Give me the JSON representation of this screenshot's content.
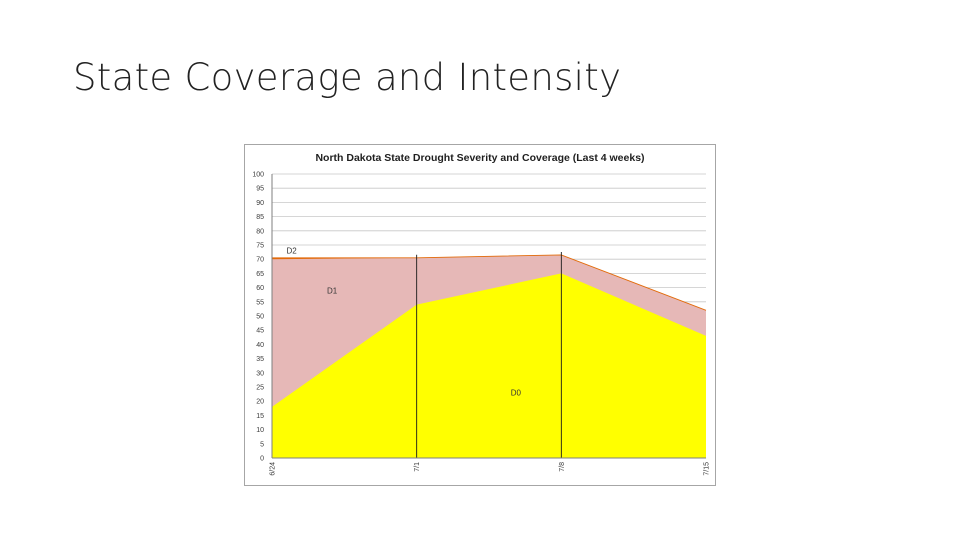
{
  "slide": {
    "title": "State Coverage and Intensity"
  },
  "chart_data": {
    "type": "area",
    "stacked": false,
    "title": "North Dakota State Drought Severity and Coverage (Last 4 weeks)",
    "xlabel": "",
    "ylabel": "",
    "x_tick_labels": [
      "6/24",
      "7/1",
      "7/8",
      "7/15"
    ],
    "ylim": [
      0,
      100
    ],
    "y_ticks": [
      0,
      5,
      10,
      15,
      20,
      25,
      30,
      35,
      40,
      45,
      50,
      55,
      60,
      65,
      70,
      75,
      80,
      85,
      90,
      95,
      100
    ],
    "grid": true,
    "series": [
      {
        "name": "D2",
        "values": [
          70.5,
          70.5,
          71.5,
          52
        ],
        "color": "#e26b0a"
      },
      {
        "name": "D1",
        "values": [
          70,
          70.5,
          71.5,
          52
        ],
        "color": "#e6b8b7"
      },
      {
        "name": "D0",
        "values": [
          18,
          54,
          65,
          43
        ],
        "color": "#ffff00"
      }
    ],
    "area_labels": [
      {
        "text": "D2",
        "x": 0.1,
        "y": 72
      },
      {
        "text": "D1",
        "x": 0.38,
        "y": 58
      },
      {
        "text": "D0",
        "x": 1.65,
        "y": 22
      }
    ],
    "vertical_markers": [
      1,
      2
    ]
  }
}
